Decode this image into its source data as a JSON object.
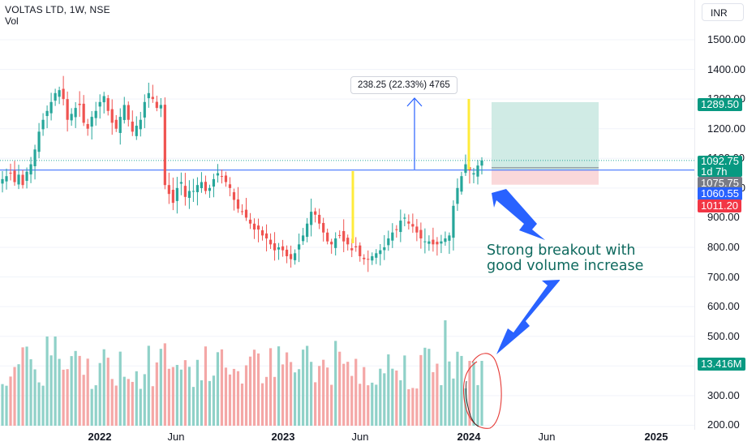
{
  "header": {
    "symbol": "VOLTAS LTD, 1W, NSE",
    "indicator": "Vol"
  },
  "currency": "INR",
  "annotation": {
    "line1": "Strong breakout with",
    "line2": "good volume increase"
  },
  "measure_label": "238.25 (22.33%) 4765",
  "badges": {
    "target": "1289.50",
    "last": "1092.75",
    "countdown": "1d 7h",
    "open": "1075.75",
    "entry": "1060.55",
    "stop": "1011.20",
    "volume": "13.416M"
  },
  "colors": {
    "up": "#26a69a",
    "down": "#ef5350",
    "vol_up": "#8fd1c8",
    "vol_down": "#f4a7a6",
    "entry_line": "#2962ff",
    "target_zone": "#cbe9e2",
    "stop_zone": "#fad4d6",
    "highlight": "#ffeb3b",
    "badge_green": "#089981",
    "badge_red": "#f23645",
    "badge_blue": "#2962ff",
    "badge_gray": "#787b86",
    "ink_circle": "#e53935"
  },
  "chart_data": {
    "type": "candlestick",
    "symbol": "VOLTAS LTD",
    "interval": "1W",
    "exchange": "NSE",
    "y_axis": {
      "ticks": [
        "1500.00",
        "1400.00",
        "1300.00",
        "1200.00",
        "1100.00",
        "1000.00",
        "900.00",
        "800.00",
        "700.00",
        "600.00",
        "500.00",
        "400.00",
        "300.00",
        "200.00"
      ],
      "range": [
        200,
        1500
      ]
    },
    "x_axis": {
      "ticks": [
        "2022",
        "Jun",
        "2023",
        "Jun",
        "2024",
        "Jun",
        "2025"
      ],
      "bold": [
        "2022",
        "2023",
        "2024",
        "2025"
      ]
    },
    "close_series_approx": [
      1030,
      1040,
      1050,
      1020,
      1045,
      1010,
      1055,
      1080,
      1130,
      1190,
      1230,
      1260,
      1290,
      1320,
      1330,
      1300,
      1230,
      1250,
      1270,
      1280,
      1220,
      1200,
      1240,
      1260,
      1290,
      1310,
      1260,
      1220,
      1200,
      1240,
      1280,
      1230,
      1190,
      1210,
      1230,
      1290,
      1320,
      1300,
      1270,
      1280,
      1010,
      980,
      950,
      1000,
      1020,
      970,
      990,
      990,
      1010,
      1020,
      990,
      1000,
      1030,
      1050,
      1040,
      1020,
      1000,
      960,
      930,
      920,
      900,
      880,
      860,
      860,
      840,
      830,
      810,
      790,
      800,
      790,
      770,
      760,
      780,
      810,
      840,
      880,
      920,
      910,
      880,
      850,
      820,
      810,
      830,
      840,
      820,
      810,
      790,
      800,
      770,
      760,
      760,
      770,
      780,
      790,
      800,
      830,
      850,
      860,
      890,
      900,
      880,
      870,
      850,
      830,
      820,
      820,
      810,
      810,
      820,
      830,
      840,
      940,
      1000,
      1040,
      1080,
      1060,
      1050,
      1075.75,
      1092.75
    ],
    "last_price": 1092.75,
    "long_position": {
      "entry": 1060.55,
      "target": 1289.5,
      "stop": 1011.2
    },
    "measure": "238.25 (22.33%) 4765",
    "volume": {
      "last": "13.416M"
    }
  }
}
